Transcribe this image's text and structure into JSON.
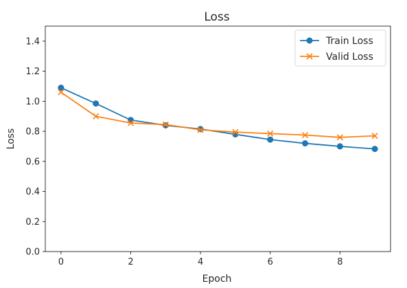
{
  "chart_data": {
    "type": "line",
    "title": "Loss",
    "xlabel": "Epoch",
    "ylabel": "Loss",
    "xlim": [
      -0.45,
      9.45
    ],
    "ylim": [
      0.0,
      1.5
    ],
    "xticks": [
      0,
      2,
      4,
      6,
      8
    ],
    "yticks": [
      0.0,
      0.2,
      0.4,
      0.6,
      0.8,
      1.0,
      1.2,
      1.4
    ],
    "xtick_labels": [
      "0",
      "2",
      "4",
      "6",
      "8"
    ],
    "ytick_labels": [
      "0.0",
      "0.2",
      "0.4",
      "0.6",
      "0.8",
      "1.0",
      "1.2",
      "1.4"
    ],
    "grid": false,
    "legend_position": "top-right",
    "x": [
      0,
      1,
      2,
      3,
      4,
      5,
      6,
      7,
      8,
      9
    ],
    "series": [
      {
        "name": "Train Loss",
        "marker": "circle",
        "color": "#1f77b4",
        "values": [
          1.09,
          0.985,
          0.875,
          0.84,
          0.815,
          0.78,
          0.745,
          0.72,
          0.7,
          0.683
        ]
      },
      {
        "name": "Valid Loss",
        "marker": "x",
        "color": "#ff7f0e",
        "values": [
          1.06,
          0.9,
          0.855,
          0.845,
          0.81,
          0.795,
          0.785,
          0.775,
          0.76,
          0.77
        ]
      }
    ]
  }
}
